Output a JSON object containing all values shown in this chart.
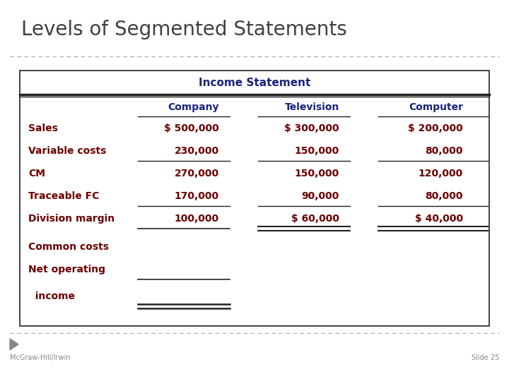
{
  "title": "Levels of Segmented Statements",
  "title_color": "#404040",
  "title_fontsize": 20,
  "background": "#ffffff",
  "table_header": "Income Statement",
  "col_header_color": "#1a237e",
  "row_label_color": "#6b0000",
  "data_color": "#6b0000",
  "rows": [
    [
      "Sales",
      "$ 500,000",
      "$ 300,000",
      "$ 200,000"
    ],
    [
      "Variable costs",
      "230,000",
      "150,000",
      "80,000"
    ],
    [
      "CM",
      "270,000",
      "150,000",
      "120,000"
    ],
    [
      "Traceable FC",
      "170,000",
      "90,000",
      "80,000"
    ],
    [
      "Division margin",
      "100,000",
      "$ 60,000",
      "$ 40,000"
    ],
    [
      "Common costs",
      "",
      "",
      ""
    ],
    [
      "Net operating",
      "",
      "",
      ""
    ],
    [
      "  income",
      "",
      "",
      ""
    ]
  ],
  "footer_left": "McGraw-Hill/Irwin",
  "footer_right": "Slide 25",
  "footer_color": "#888888",
  "footer_fontsize": 7,
  "dashed_line_color": "#aaaaaa",
  "border_color": "#222222",
  "line_color": "#222222"
}
